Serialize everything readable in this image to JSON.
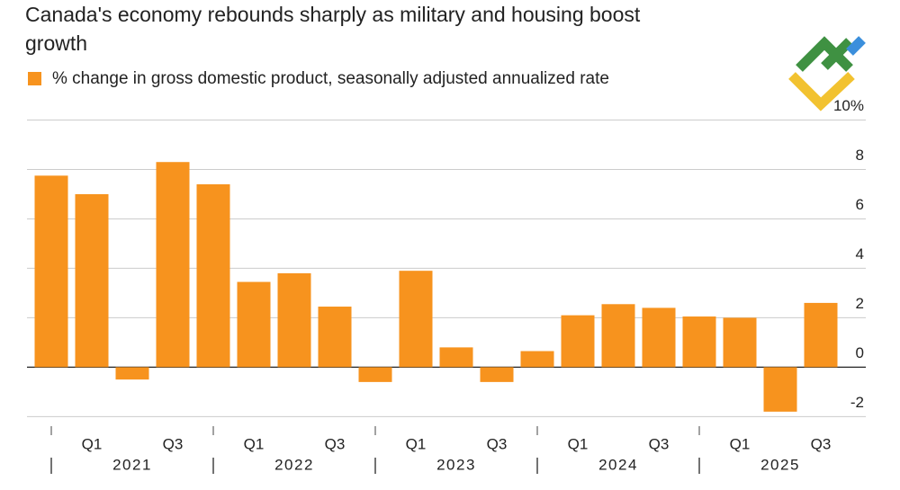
{
  "chart_data": {
    "type": "bar",
    "title": "Canada's economy rebounds sharply as military and housing boost growth",
    "legend": "% change in gross domestic product, seasonally adjusted annualized rate",
    "color": "#f7931e",
    "categories": [
      null,
      "Q1",
      null,
      "Q3",
      null,
      "Q1",
      null,
      "Q3",
      null,
      "Q1",
      null,
      "Q3",
      null,
      "Q1",
      null,
      "Q3",
      null,
      "Q1",
      null,
      "Q3"
    ],
    "year_groups": [
      "2021",
      "2022",
      "2023",
      "2024",
      "2025"
    ],
    "values": [
      7.75,
      7.0,
      -0.5,
      8.3,
      7.4,
      3.45,
      3.8,
      2.45,
      -0.6,
      3.9,
      0.8,
      -0.6,
      0.65,
      2.1,
      2.55,
      2.4,
      2.05,
      2.0,
      -1.8,
      2.6
    ],
    "ylim": [
      -2.3,
      10.2
    ],
    "yticks": [
      -2,
      0,
      2,
      4,
      6,
      8,
      {
        "value": 10,
        "label": "10%"
      }
    ],
    "grid": true
  }
}
